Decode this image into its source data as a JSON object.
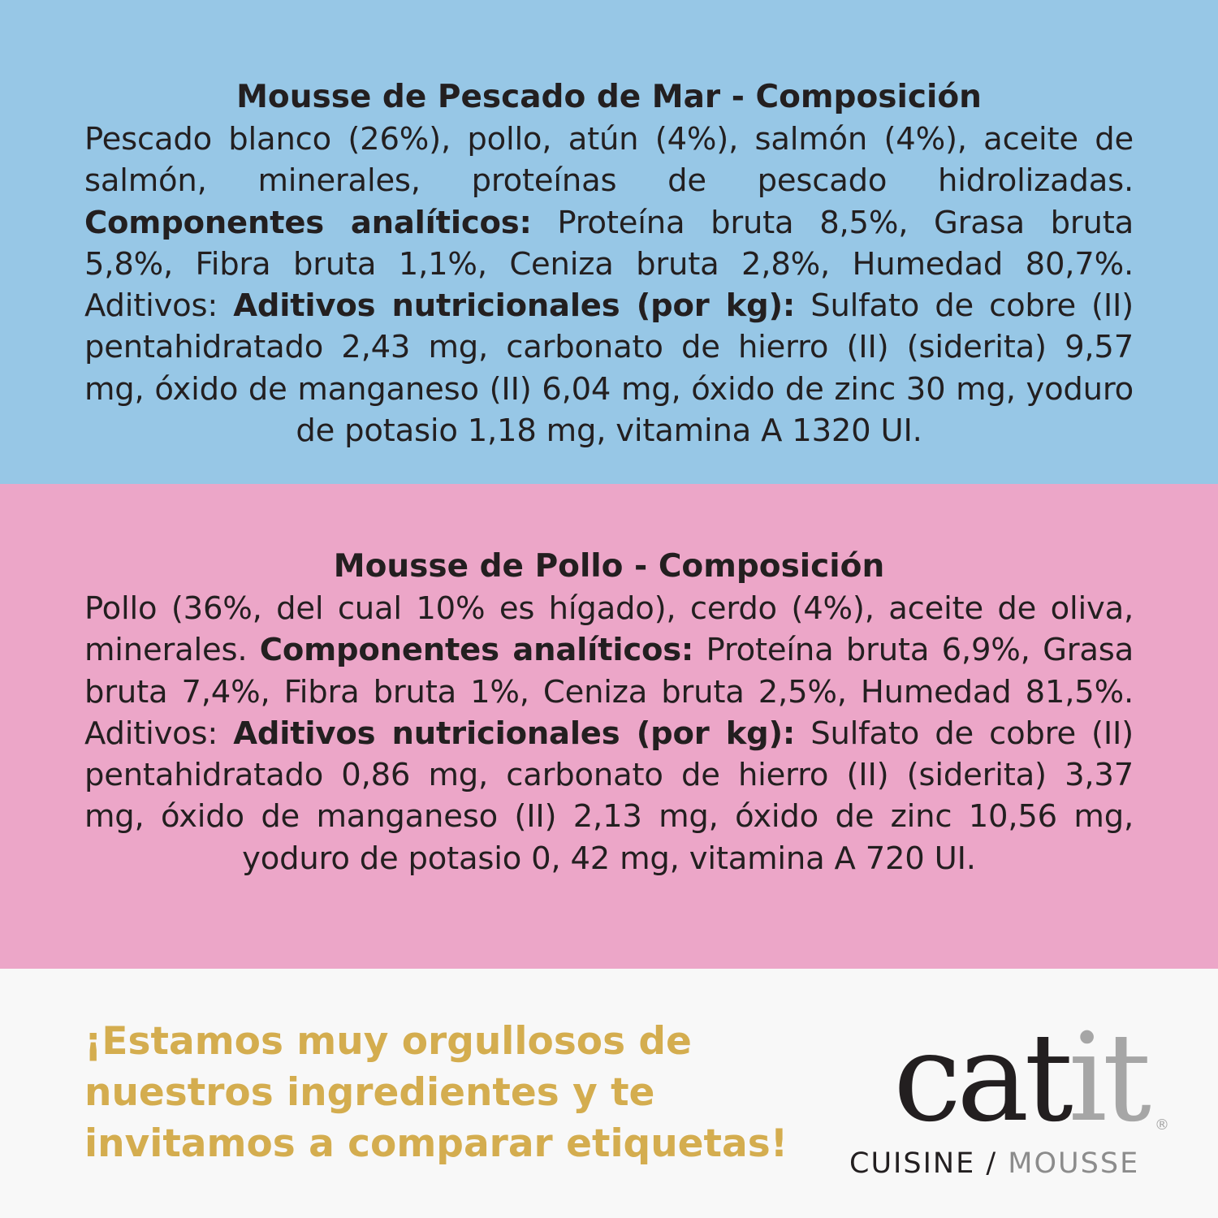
{
  "colors": {
    "blue_panel": "#97c7e6",
    "pink_panel": "#eca6c8",
    "footer": "#f8f8f8",
    "slogan": "#d4ad4f",
    "text": "#231f20",
    "logo_grey": "#a6a6a6"
  },
  "fish": {
    "title": "Mousse de Pescado de Mar - Composición",
    "ingredients": "Pescado blanco (26%), pollo, atún (4%), salmón (4%), aceite de salmón, minerales, proteínas de pescado hidrolizadas. ",
    "analytic_label": "Componentes analíticos:",
    "analytic": " Proteína bruta 8,5%, Grasa bruta 5,8%, Fibra bruta 1,1%, Ceniza bruta 2,8%, Humedad 80,7%. Aditivos: ",
    "additives_label": "Aditivos nutricionales (por kg):",
    "additives": " Sulfato de cobre (II) pentahidratado 2,43 mg, carbonato de hierro (II) (siderita) 9,57 mg, óxido de manganeso (II) 6,04 mg, óxido de zinc 30 mg, yoduro de potasio 1,18 mg, vitamina A 1320 UI."
  },
  "chicken": {
    "title": "Mousse de Pollo - Composición",
    "ingredients": "Pollo (36%, del cual 10% es hígado), cerdo (4%), aceite de oliva, minerales. ",
    "analytic_label": "Componentes analíticos:",
    "analytic": " Proteína bruta 6,9%, Grasa bruta 7,4%, Fibra bruta 1%, Ceniza bruta 2,5%, Humedad 81,5%. Aditivos: ",
    "additives_label": "Aditivos nutricionales (por kg):",
    "additives": " Sulfato de cobre (II) pentahidratado 0,86 mg, carbonato de hierro (II) (siderita) 3,37 mg, óxido de manganeso (II) 2,13 mg, óxido de zinc 10,56 mg, yoduro de potasio 0, 42 mg, vitamina A 720 UI."
  },
  "footer": {
    "slogan": "¡Estamos muy orgullosos de nuestros ingredientes y te invitamos a comparar etiquetas!",
    "logo": {
      "brand_dark": "cat",
      "brand_light": "it",
      "registered": "®",
      "line_dark": "CUISINE /",
      "line_light": "MOUSSE"
    }
  }
}
